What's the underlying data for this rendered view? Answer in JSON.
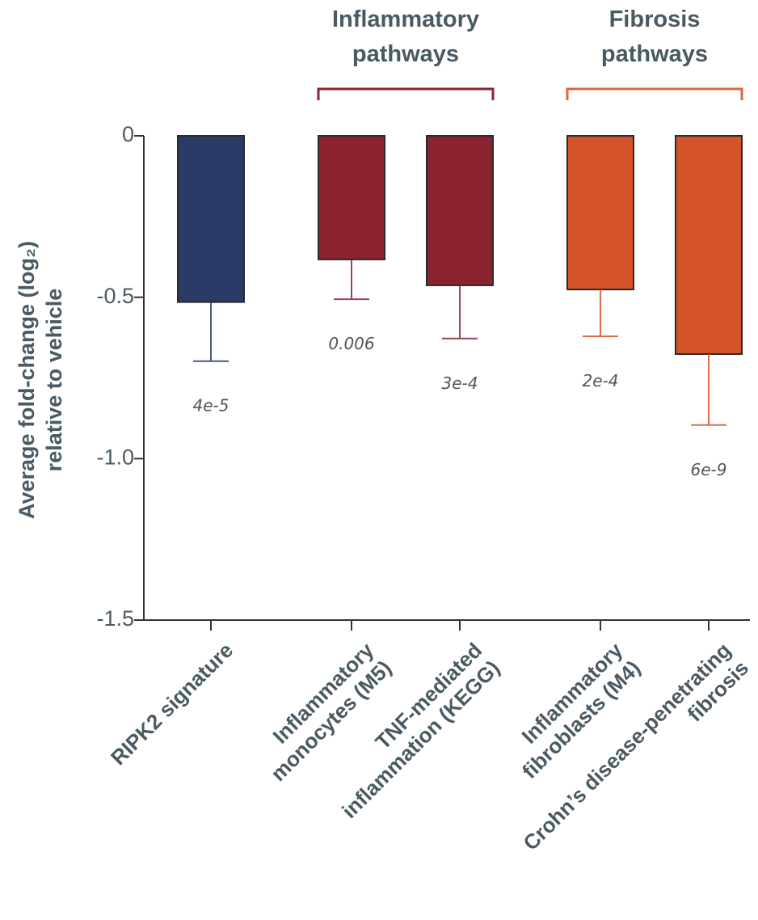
{
  "chart_data": {
    "type": "bar",
    "ylabel": "Average fold-change (log₂)\nrelative to vehicle",
    "categories": [
      "RIPK2 signature",
      "Inflammatory\nmonocytes (M5)",
      "TNF-mediated\ninflammation (KEGG)",
      "Inflammatory\nfibroblasts (M4)",
      "Crohn’s disease-penetrating\nfibrosis"
    ],
    "values": [
      -0.515,
      -0.383,
      -0.463,
      -0.476,
      -0.676
    ],
    "errors": [
      0.183,
      0.123,
      0.165,
      0.145,
      0.22
    ],
    "colors": [
      "#2b3a66",
      "#8b2331",
      "#8b2331",
      "#d5532a",
      "#d5532a"
    ],
    "p_labels": [
      "4e-5",
      "0.006",
      "3e-4",
      "2e-4",
      "6e-9"
    ],
    "groups": [
      {
        "title": "Inflammatory\npathways",
        "color": "#8b2331",
        "members": [
          1,
          2
        ]
      },
      {
        "title": "Fibrosis\npathways",
        "color": "#e0653e",
        "members": [
          3,
          4
        ]
      }
    ],
    "ylim": [
      0,
      -1.5
    ],
    "yticks": [
      0,
      -0.5,
      {
        "value": -1,
        "label": "-1.0"
      },
      -1.5
    ]
  }
}
